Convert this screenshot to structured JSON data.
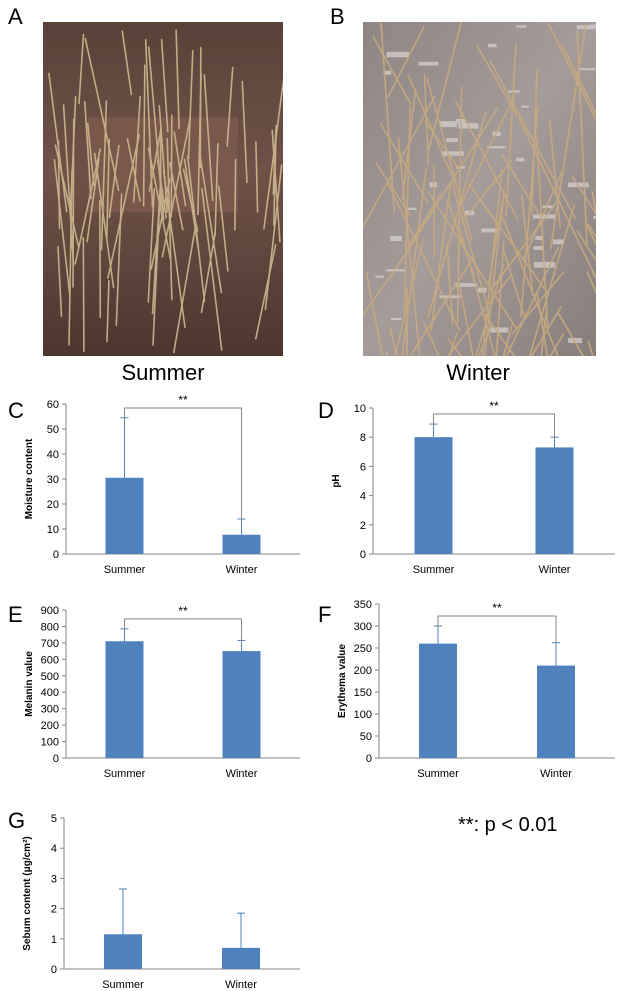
{
  "panels": {
    "a": "A",
    "b": "B",
    "c": "C",
    "d": "D",
    "e": "E",
    "f": "F",
    "g": "G"
  },
  "photos": {
    "summer_caption": "Summer",
    "winter_caption": "Winter",
    "summer_colors": {
      "skin": "#6e5046",
      "hair": "#c8b48c"
    },
    "winter_colors": {
      "skin": "#9a8f8c",
      "hair": "#c9b088"
    }
  },
  "significance_note": "**: p < 0.01",
  "bar_color": "#4f81bd",
  "chart_data": [
    {
      "id": "C",
      "type": "bar",
      "categories": [
        "Summer",
        "Winter"
      ],
      "values": [
        30.5,
        7.7
      ],
      "errors": [
        24,
        6.3
      ],
      "ylabel": "Moisture content",
      "ylim": [
        0,
        60
      ],
      "yticks": [
        "0",
        "10",
        "20",
        "30",
        "40",
        "50",
        "60"
      ],
      "significance": "**"
    },
    {
      "id": "D",
      "type": "bar",
      "categories": [
        "Summer",
        "Winter"
      ],
      "values": [
        8.0,
        7.3
      ],
      "errors": [
        0.9,
        0.7
      ],
      "ylabel": "pH",
      "ylim": [
        0,
        10
      ],
      "yticks": [
        "0",
        "2",
        "4",
        "6",
        "8",
        "10"
      ],
      "significance": "**"
    },
    {
      "id": "E",
      "type": "bar",
      "categories": [
        "Summer",
        "Winter"
      ],
      "values": [
        710,
        650
      ],
      "errors": [
        75,
        65
      ],
      "ylabel": "Melanin value",
      "ylim": [
        0,
        900
      ],
      "yticks": [
        "0",
        "100",
        "200",
        "300",
        "400",
        "500",
        "600",
        "700",
        "800",
        "900"
      ],
      "significance": "**"
    },
    {
      "id": "F",
      "type": "bar",
      "categories": [
        "Summer",
        "Winter"
      ],
      "values": [
        260,
        210
      ],
      "errors": [
        40,
        52
      ],
      "ylabel": "Erythema value",
      "ylim": [
        0,
        350
      ],
      "yticks": [
        "0",
        "50",
        "100",
        "150",
        "200",
        "250",
        "300",
        "350"
      ],
      "significance": "**"
    },
    {
      "id": "G",
      "type": "bar",
      "categories": [
        "Summer",
        "Winter"
      ],
      "values": [
        1.15,
        0.7
      ],
      "errors": [
        1.5,
        1.15
      ],
      "ylabel": "Sebum content (μg/cm²)",
      "ylim": [
        0,
        5
      ],
      "yticks": [
        "0",
        "1",
        "2",
        "3",
        "4",
        "5"
      ],
      "significance": ""
    }
  ]
}
